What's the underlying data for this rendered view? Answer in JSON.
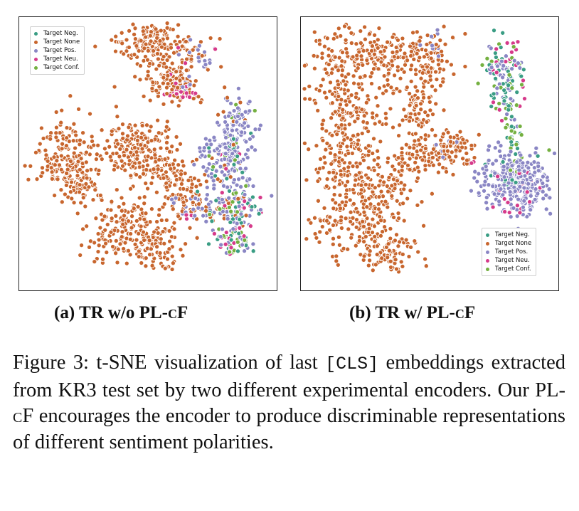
{
  "colors": {
    "neg": "#3a9d84",
    "none": "#c8662e",
    "pos": "#8a86c4",
    "neu": "#d63a8a",
    "conf": "#74b040"
  },
  "legend": {
    "neg": "Target Neg.",
    "none": "Target None",
    "pos": "Target Pos.",
    "neu": "Target Neu.",
    "conf": "Target Conf."
  },
  "panels": {
    "a": {
      "label": "(a) TR w/o PL-",
      "label_sc": "cF"
    },
    "b": {
      "label": "(b) TR w/ PL-",
      "label_sc": "cF"
    }
  },
  "caption": {
    "part1": "Figure 3: t-SNE visualization of last ",
    "code": "[CLS]",
    "part2": " embeddings extracted from KR3 test set by two different experimental encoders. Our PL-",
    "sc": "cF",
    "part3": " encourages the encoder to produce discriminable representations of different sentiment polarities."
  },
  "chart_data": [
    {
      "type": "scatter",
      "title": "(a) TR w/o PL-cF",
      "legend_position": "top-left",
      "series": [
        {
          "name": "Target Neg."
        },
        {
          "name": "Target None"
        },
        {
          "name": "Target Pos."
        },
        {
          "name": "Target Neu."
        },
        {
          "name": "Target Conf."
        }
      ]
    },
    {
      "type": "scatter",
      "title": "(b) TR w/ PL-cF",
      "legend_position": "bottom-right",
      "series": [
        {
          "name": "Target Neg."
        },
        {
          "name": "Target None"
        },
        {
          "name": "Target Pos."
        },
        {
          "name": "Target Neu."
        },
        {
          "name": "Target Conf."
        }
      ]
    }
  ]
}
